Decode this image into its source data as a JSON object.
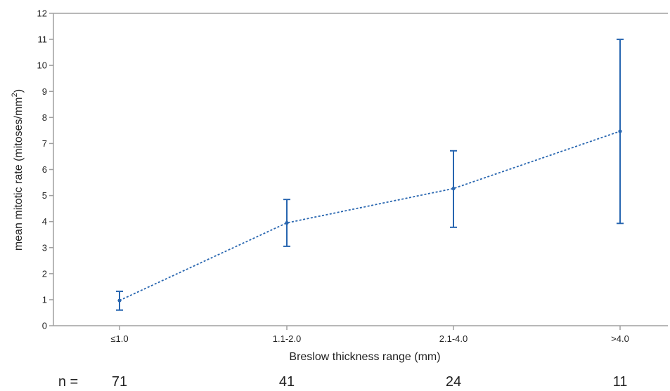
{
  "chart_data": {
    "type": "line",
    "categories": [
      "≤1.0",
      "1.1-2.0",
      "2.1-4.0",
      ">4.0"
    ],
    "series": [
      {
        "values": [
          0.97,
          3.95,
          5.27,
          7.47
        ],
        "error_low": [
          0.6,
          3.05,
          3.78,
          3.93
        ],
        "error_high": [
          1.32,
          4.85,
          6.72,
          11.0
        ]
      }
    ],
    "xlabel": "Breslow thickness range (mm)",
    "ylabel_main": "mean mitotic rate (mitoses/mm",
    "ylabel_sup": "2",
    "ylabel_end": ")",
    "ylim": [
      0,
      12
    ],
    "yticks": [
      "0",
      "1",
      "2",
      "3",
      "4",
      "5",
      "6",
      "7",
      "8",
      "9",
      "10",
      "11",
      "12"
    ],
    "n_label": "n =",
    "n_values": [
      "71",
      "41",
      "24",
      "11"
    ],
    "line_style": "dotted",
    "grid": false,
    "color": "#2866b0",
    "axis_color": "#a0a0a0"
  }
}
